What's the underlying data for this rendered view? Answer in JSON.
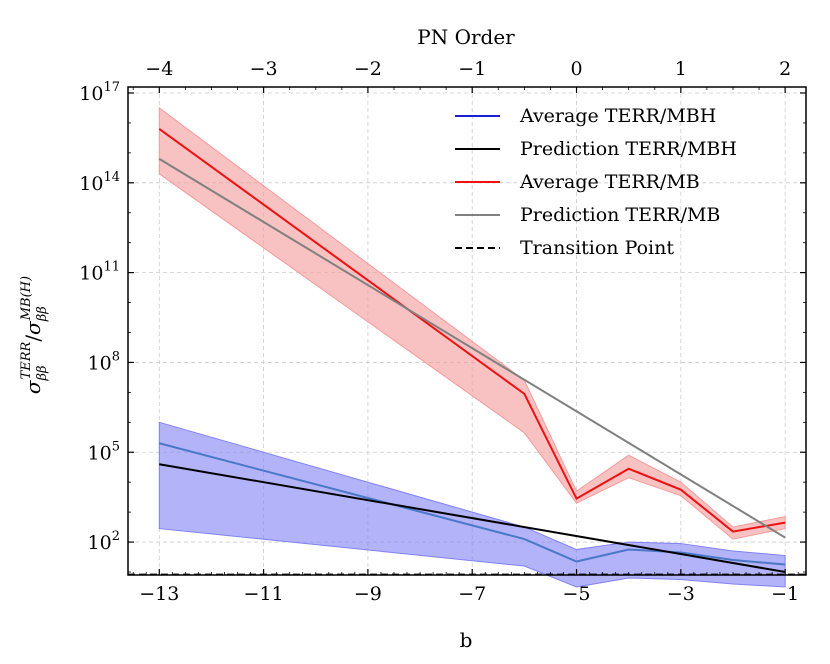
{
  "chart_data": {
    "type": "line",
    "xlabel": "b",
    "top_xlabel": "PN Order",
    "ylabel_main": "σ",
    "ylabel_sub": "ββ",
    "ylabel_sup_num": "TERR",
    "ylabel_sup_den": "MB(H)",
    "ylabel_sep": "/",
    "log_base": "10",
    "xlim": [
      -13.6,
      -0.6
    ],
    "ylim_log10": [
      0.9,
      17.2
    ],
    "x_ticks": [
      -13,
      -11,
      -9,
      -7,
      -5,
      -3,
      -1
    ],
    "x_tick_labels": [
      "−13",
      "−11",
      "−9",
      "−7",
      "−5",
      "−3",
      "−1"
    ],
    "top_ticks_b": [
      -13,
      -11,
      -9,
      -7,
      -5,
      -3,
      -1
    ],
    "top_tick_labels": [
      "−4",
      "−3",
      "−2",
      "−1",
      "0",
      "1",
      "2"
    ],
    "y_ticks_log10": [
      2,
      5,
      8,
      11,
      14,
      17
    ],
    "y_tick_labels": [
      "2",
      "5",
      "8",
      "11",
      "14",
      "17"
    ],
    "grid": true,
    "legend_position": "top-right",
    "series": [
      {
        "name": "Average TERR/MBH",
        "color": "#4a78c8",
        "legend_color": "#1f1fd6",
        "style": "solid",
        "x": [
          -13,
          -6,
          -5,
          -4,
          -3,
          -2,
          -1
        ],
        "log10_values": [
          5.3,
          2.1,
          1.35,
          1.75,
          1.65,
          1.4,
          1.25
        ],
        "band_color": "#8080f5",
        "band_low_log10": [
          2.45,
          1.2,
          0.5,
          0.8,
          0.75,
          0.6,
          0.5
        ],
        "band_high_log10": [
          6.0,
          2.5,
          1.75,
          2.0,
          1.95,
          1.7,
          1.55
        ]
      },
      {
        "name": "Prediction TERR/MBH",
        "color": "#000000",
        "style": "solid",
        "x": [
          -13,
          -1
        ],
        "log10_values": [
          4.6,
          1.0
        ]
      },
      {
        "name": "Average TERR/MB",
        "color": "#ee1111",
        "style": "solid",
        "x": [
          -13,
          -6,
          -5,
          -4,
          -3,
          -2,
          -1
        ],
        "log10_values": [
          15.8,
          6.95,
          3.45,
          4.45,
          3.75,
          2.35,
          2.65
        ],
        "band_color": "#f59a9a",
        "band_low_log10": [
          14.3,
          5.65,
          3.3,
          4.15,
          3.55,
          2.1,
          2.45
        ],
        "band_high_log10": [
          16.5,
          7.4,
          3.7,
          4.9,
          4.0,
          2.5,
          2.85
        ]
      },
      {
        "name": "Prediction TERR/MB",
        "color": "#808080",
        "style": "solid",
        "x": [
          -13,
          -1
        ],
        "log10_values": [
          14.8,
          2.15
        ]
      },
      {
        "name": "Transition Point",
        "color": "#000000",
        "style": "dashed",
        "y_log10": 0.92
      }
    ]
  }
}
